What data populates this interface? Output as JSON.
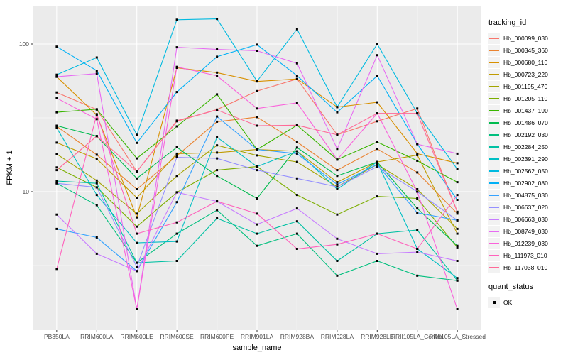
{
  "chart_data": {
    "type": "line",
    "title": "",
    "xlabel": "sample_name",
    "ylabel": "FPKM + 1",
    "y_scale": "log10",
    "ylim": [
      1.1,
      185
    ],
    "y_ticks": [
      {
        "value": 10,
        "label": "10"
      },
      {
        "value": 100,
        "label": "100"
      }
    ],
    "y_minor": [
      3.1623,
      31.623
    ],
    "grid": true,
    "panel_bg": "#EBEBEB",
    "grid_color": "#FFFFFF",
    "tick_label_color": "#4D4D4D",
    "point_color": "#000000",
    "legend_position": "right",
    "categories": [
      "PB350LA",
      "RRIM600LA",
      "RRIM600LE",
      "RRIM600SE",
      "RRIM600PE",
      "RRIM901LA",
      "RRIM928BA",
      "RRIM928LA",
      "RRIM928LE",
      "RRII105LA_Control",
      "RRII105LA_Stressed"
    ],
    "series": [
      {
        "name": "Hb_000099_030",
        "color": "#F8766D",
        "values": [
          47,
          36,
          13.7,
          30,
          36,
          48,
          58,
          24.3,
          30,
          36.6,
          7.3
        ]
      },
      {
        "name": "Hb_000345_360",
        "color": "#EA8331",
        "values": [
          27.7,
          17.8,
          10.4,
          17.5,
          29.8,
          32,
          21.7,
          14,
          19.5,
          13.5,
          7.1
        ]
      },
      {
        "name": "Hb_000680_110",
        "color": "#D89000",
        "values": [
          60,
          33,
          6.7,
          69,
          64,
          55.8,
          58,
          37.4,
          40.3,
          18.1,
          15.6
        ]
      },
      {
        "name": "Hb_000723_220",
        "color": "#C09B00",
        "values": [
          21.5,
          16.7,
          9.1,
          18.1,
          18.4,
          19.3,
          18.8,
          11.6,
          15.9,
          17.7,
          5.2
        ]
      },
      {
        "name": "Hb_001195_470",
        "color": "#A3A500",
        "values": [
          18,
          11.9,
          7.1,
          12.8,
          20.6,
          17.6,
          15.9,
          10.8,
          15.3,
          10.4,
          5.6
        ]
      },
      {
        "name": "Hb_001205_110",
        "color": "#7CAE00",
        "values": [
          14.6,
          10.7,
          5.8,
          9.9,
          14,
          14.8,
          9.5,
          7,
          9.3,
          9,
          4.2
        ]
      },
      {
        "name": "Hb_001437_190",
        "color": "#39B600",
        "values": [
          34.5,
          36.2,
          16.8,
          27.7,
          45.6,
          19.3,
          28.2,
          16.5,
          21.7,
          16.2,
          11.6
        ]
      },
      {
        "name": "Hb_001486_070",
        "color": "#00BB4E",
        "values": [
          28,
          23.8,
          12.3,
          20,
          12.8,
          9,
          19.9,
          12.8,
          15.9,
          7.7,
          4.3
        ]
      },
      {
        "name": "Hb_002192_030",
        "color": "#00BF7D",
        "values": [
          11.4,
          8.1,
          3.3,
          5.2,
          7.5,
          4.3,
          5.2,
          2.7,
          3.4,
          2.7,
          2.5
        ]
      },
      {
        "name": "Hb_002284_250",
        "color": "#00C1A3",
        "values": [
          11.8,
          11.4,
          3.3,
          3.4,
          6.6,
          5.2,
          6.3,
          3.4,
          5.2,
          5.5,
          2.5
        ]
      },
      {
        "name": "Hb_002391_290",
        "color": "#00BFC4",
        "values": [
          27,
          9.5,
          4.5,
          4.6,
          23.4,
          14.8,
          18.8,
          10.4,
          15.9,
          4.1,
          2.6
        ]
      },
      {
        "name": "Hb_002562_050",
        "color": "#00BAE0",
        "values": [
          62,
          81,
          24.3,
          146,
          148,
          56,
          126,
          37.4,
          100,
          34,
          14.2
        ]
      },
      {
        "name": "Hb_002902_080",
        "color": "#00B0F6",
        "values": [
          96,
          66,
          21.4,
          47.3,
          82,
          99,
          61,
          34.5,
          61,
          21,
          8.8
        ]
      },
      {
        "name": "Hb_004875_030",
        "color": "#35A2FF",
        "values": [
          5.6,
          4.9,
          2.9,
          8.5,
          32.3,
          19.3,
          18.1,
          11.2,
          15.3,
          7.2,
          6.4
        ]
      },
      {
        "name": "Hb_006637_020",
        "color": "#9590FF",
        "values": [
          11.4,
          10.7,
          3.1,
          17.1,
          16.8,
          14,
          12.3,
          10.8,
          14.8,
          10,
          6.4
        ]
      },
      {
        "name": "Hb_006663_030",
        "color": "#C77CFF",
        "values": [
          7,
          3.8,
          2.9,
          9.9,
          8.6,
          6,
          7.7,
          4.8,
          3.8,
          3.9,
          3.4
        ]
      },
      {
        "name": "Hb_008749_030",
        "color": "#E76BF3",
        "values": [
          60,
          63,
          1.6,
          95,
          92,
          90,
          74,
          19.5,
          84,
          21,
          18.1
        ]
      },
      {
        "name": "Hb_012239_030",
        "color": "#FA62DB",
        "values": [
          43,
          31,
          1.6,
          70,
          61,
          36.6,
          40,
          16.5,
          34,
          10,
          1.6
        ]
      },
      {
        "name": "Hb_111973_010",
        "color": "#FF62BC",
        "values": [
          3,
          33.5,
          5.2,
          6.2,
          8.6,
          7.1,
          4.1,
          4.4,
          5.2,
          4.1,
          9.5
        ]
      },
      {
        "name": "Hb_117038_010",
        "color": "#FF6A98",
        "values": [
          14,
          23.8,
          13.7,
          30.3,
          35.8,
          28,
          28.2,
          24.3,
          33.9,
          33.9,
          7.3
        ]
      }
    ]
  },
  "legend": {
    "tracking_title": "tracking_id",
    "quant_title": "quant_status",
    "quant_items": [
      {
        "label": "OK"
      }
    ]
  }
}
